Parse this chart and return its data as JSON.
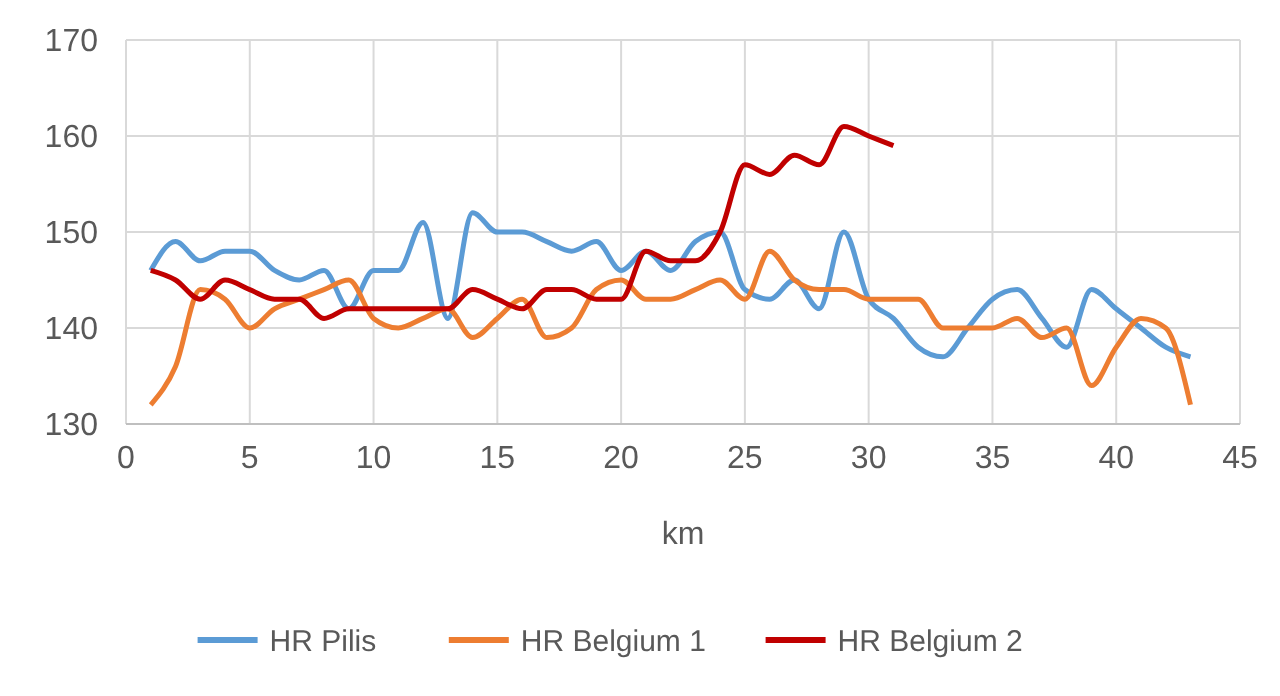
{
  "chart_data": {
    "type": "line",
    "xlabel": "km",
    "x": [
      1,
      2,
      3,
      4,
      5,
      6,
      7,
      8,
      9,
      10,
      11,
      12,
      13,
      14,
      15,
      16,
      17,
      18,
      19,
      20,
      21,
      22,
      23,
      24,
      25,
      26,
      27,
      28,
      29,
      30,
      31,
      32,
      33,
      34,
      35,
      36,
      37,
      38,
      39,
      40,
      41,
      42,
      43
    ],
    "xlim": [
      0,
      45
    ],
    "xticks": [
      0,
      5,
      10,
      15,
      20,
      25,
      30,
      35,
      40,
      45
    ],
    "ylim": [
      130,
      170
    ],
    "yticks": [
      130,
      140,
      150,
      160,
      170
    ],
    "grid": true,
    "legend": "bottom",
    "marker": "none",
    "line_style": "solid",
    "series": [
      {
        "name": "HR Pilis",
        "color": "#5b9bd5",
        "values": [
          146,
          149,
          147,
          148,
          148,
          146,
          145,
          146,
          142,
          146,
          146,
          151,
          141,
          152,
          150,
          150,
          149,
          148,
          149,
          146,
          148,
          146,
          149,
          150,
          144,
          143,
          145,
          142,
          150,
          143,
          141,
          138,
          137,
          140,
          143,
          144,
          141,
          138,
          144,
          142,
          140,
          138,
          137
        ]
      },
      {
        "name": "HR Belgium 1",
        "color": "#ed7d31",
        "values": [
          132,
          136,
          144,
          143,
          140,
          142,
          143,
          144,
          145,
          141,
          140,
          141,
          142,
          139,
          141,
          143,
          139,
          140,
          144,
          145,
          143,
          143,
          144,
          145,
          143,
          148,
          145,
          144,
          144,
          143,
          143,
          143,
          140,
          140,
          140,
          141,
          139,
          140,
          134,
          138,
          141,
          140,
          132
        ]
      },
      {
        "name": "HR Belgium 2",
        "color": "#c00000",
        "x": [
          1,
          2,
          3,
          4,
          5,
          6,
          7,
          8,
          9,
          10,
          11,
          12,
          13,
          14,
          15,
          16,
          17,
          18,
          19,
          20,
          21,
          22,
          23,
          24,
          25,
          26,
          27,
          28,
          29,
          30,
          31
        ],
        "values": [
          146,
          145,
          143,
          145,
          144,
          143,
          143,
          141,
          142,
          142,
          142,
          142,
          142,
          144,
          143,
          142,
          144,
          144,
          143,
          143,
          148,
          147,
          147,
          150,
          157,
          156,
          158,
          157,
          161,
          160,
          159
        ]
      }
    ]
  }
}
